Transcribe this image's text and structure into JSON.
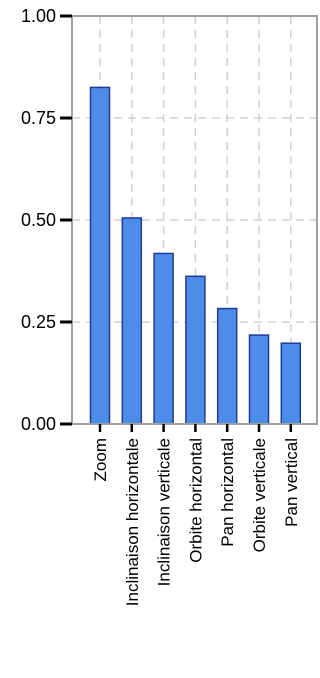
{
  "chart_data": {
    "type": "bar",
    "title": "",
    "xlabel": "",
    "ylabel": "",
    "categories": [
      "Zoom",
      "Inclinaison horizontale",
      "Inclinaison verticale",
      "Orbite horizontal",
      "Pan horizontal",
      "Orbite verticale",
      "Pan vertical"
    ],
    "values": [
      0.825,
      0.505,
      0.418,
      0.362,
      0.283,
      0.218,
      0.198
    ],
    "ylim": [
      0,
      1
    ],
    "yticks": [
      "0.00",
      "0.25",
      "0.50",
      "0.75",
      "1.00"
    ],
    "grid": true,
    "legend": "none",
    "colors": {
      "bar_fill": "#4d8ce8",
      "bar_edge": "#1f3a9e",
      "grid": "#d0d0d0",
      "axis": "#a0a0a0"
    }
  }
}
